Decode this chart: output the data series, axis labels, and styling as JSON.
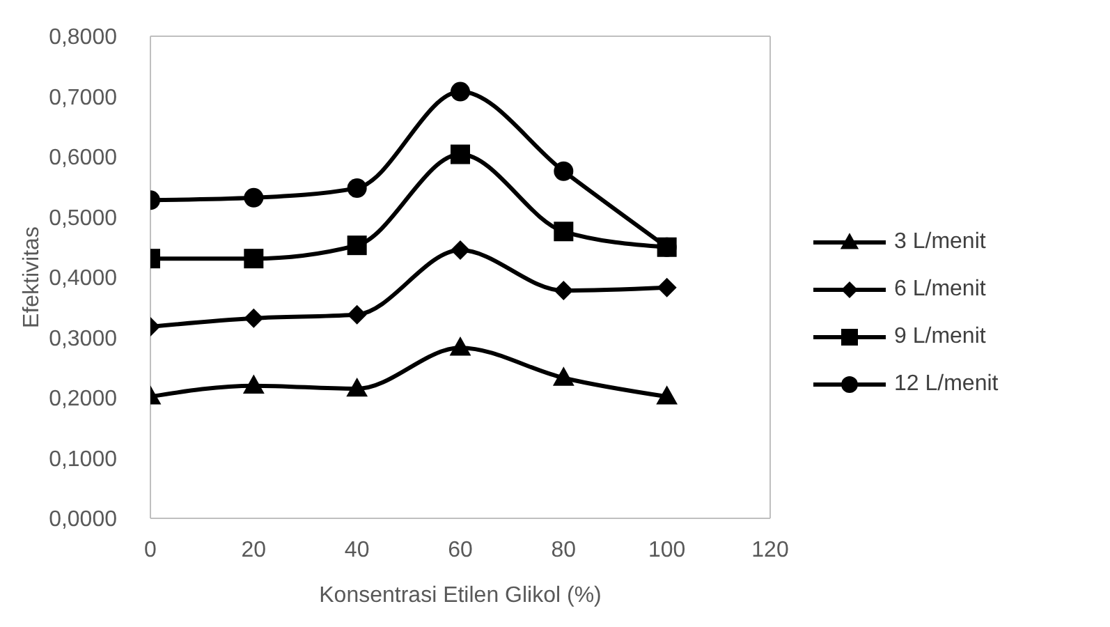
{
  "chart_data": {
    "type": "line",
    "xlabel": "Konsentrasi Etilen Glikol (%)",
    "ylabel": "Efektivitas",
    "x": [
      0,
      20,
      40,
      60,
      80,
      100
    ],
    "xlim": [
      0,
      120
    ],
    "xticks": [
      0,
      20,
      40,
      60,
      80,
      100,
      120
    ],
    "ylim": [
      0,
      0.8
    ],
    "yticks": [
      {
        "value": 0,
        "label": "0,0000"
      },
      {
        "value": 0.1,
        "label": "0,1000"
      },
      {
        "value": 0.2,
        "label": "0,2000"
      },
      {
        "value": 0.3,
        "label": "0,3000"
      },
      {
        "value": 0.4,
        "label": "0,4000"
      },
      {
        "value": 0.5,
        "label": "0,5000"
      },
      {
        "value": 0.6,
        "label": "0,6000"
      },
      {
        "value": 0.7,
        "label": "0,7000"
      },
      {
        "value": 0.8,
        "label": "0,8000"
      }
    ],
    "grid": false,
    "legend": "right",
    "line_style": "solid",
    "series": [
      {
        "name": "3 L/menit",
        "color": "#000000",
        "marker": "triangle",
        "values": [
          0.202,
          0.22,
          0.215,
          0.283,
          0.233,
          0.202
        ]
      },
      {
        "name": "6 L/menit",
        "color": "#000000",
        "marker": "diamond",
        "values": [
          0.318,
          0.332,
          0.338,
          0.445,
          0.378,
          0.383
        ]
      },
      {
        "name": "9 L/menit",
        "color": "#000000",
        "marker": "square",
        "values": [
          0.431,
          0.431,
          0.453,
          0.604,
          0.476,
          0.45
        ]
      },
      {
        "name": "12 L/menit",
        "color": "#000000",
        "marker": "circle",
        "values": [
          0.528,
          0.532,
          0.548,
          0.708,
          0.576,
          0.45
        ]
      }
    ]
  }
}
